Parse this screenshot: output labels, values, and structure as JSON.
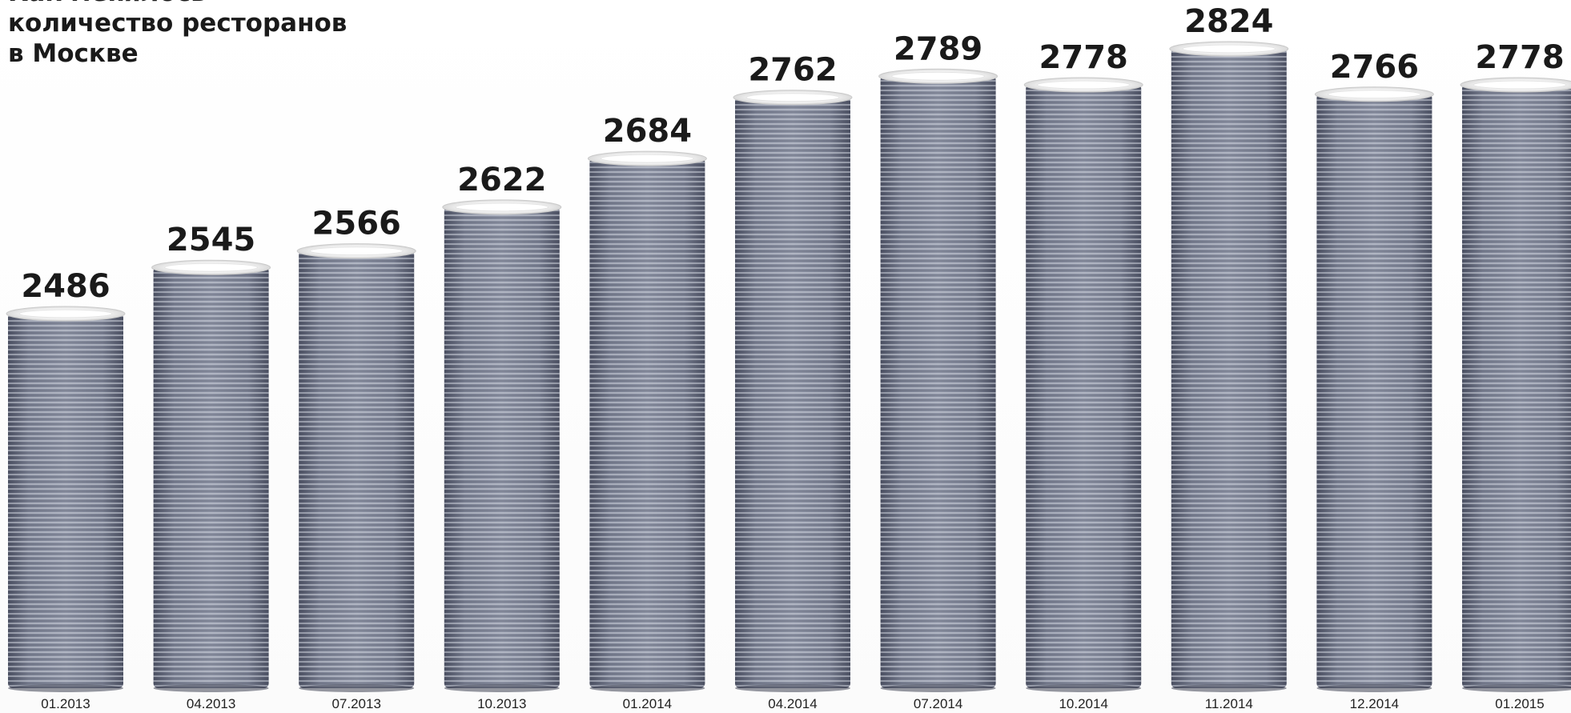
{
  "chart_data": {
    "type": "bar",
    "title": "Как менялось\nколичество ресторанов\nв Москве",
    "categories": [
      "01.2013",
      "04.2013",
      "07.2013",
      "10.2013",
      "01.2014",
      "04.2014",
      "07.2014",
      "10.2014",
      "11.2014",
      "12.2014",
      "01.2015"
    ],
    "series": [
      {
        "values": [
          2486,
          2545,
          2566,
          2622,
          2684,
          2762,
          2789,
          2778,
          2824,
          2766,
          2778
        ]
      }
    ],
    "xlabel": "",
    "ylabel": "",
    "grid": false,
    "legend": "none",
    "colors": {
      "plate": "#7b8193",
      "plate_dark": "#4c5163",
      "plate_light": "#a6abb9",
      "rim": "#f2f2f2",
      "text": "#1a1a1a"
    }
  }
}
